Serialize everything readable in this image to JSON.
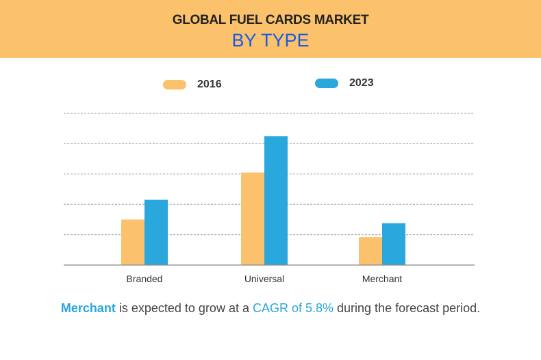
{
  "chart_data": {
    "type": "bar",
    "title": "GLOBAL FUEL CARDS MARKET",
    "subtitle": "BY TYPE",
    "categories": [
      "Branded",
      "Universal",
      "Merchant"
    ],
    "series": [
      {
        "name": "2016",
        "color": "#fbc16c",
        "values": [
          1.5,
          3.05,
          0.92
        ]
      },
      {
        "name": "2023",
        "color": "#2aa7dc",
        "values": [
          2.15,
          4.25,
          1.38
        ]
      }
    ],
    "xlabel": "",
    "ylabel": "",
    "ylim": [
      0,
      5
    ],
    "gridlines": [
      1,
      2,
      3,
      4,
      5
    ],
    "grid": true,
    "legend_position": "top-center",
    "annotation": {
      "segment_1": "Merchant",
      "segment_2": " is expected to grow at a ",
      "segment_3": "CAGR of 5.8%",
      "segment_4": " during the forecast period."
    }
  },
  "colors": {
    "header_bg": "#fcc16b",
    "subtitle": "#1a5be6",
    "highlight": "#2aa5dc"
  }
}
